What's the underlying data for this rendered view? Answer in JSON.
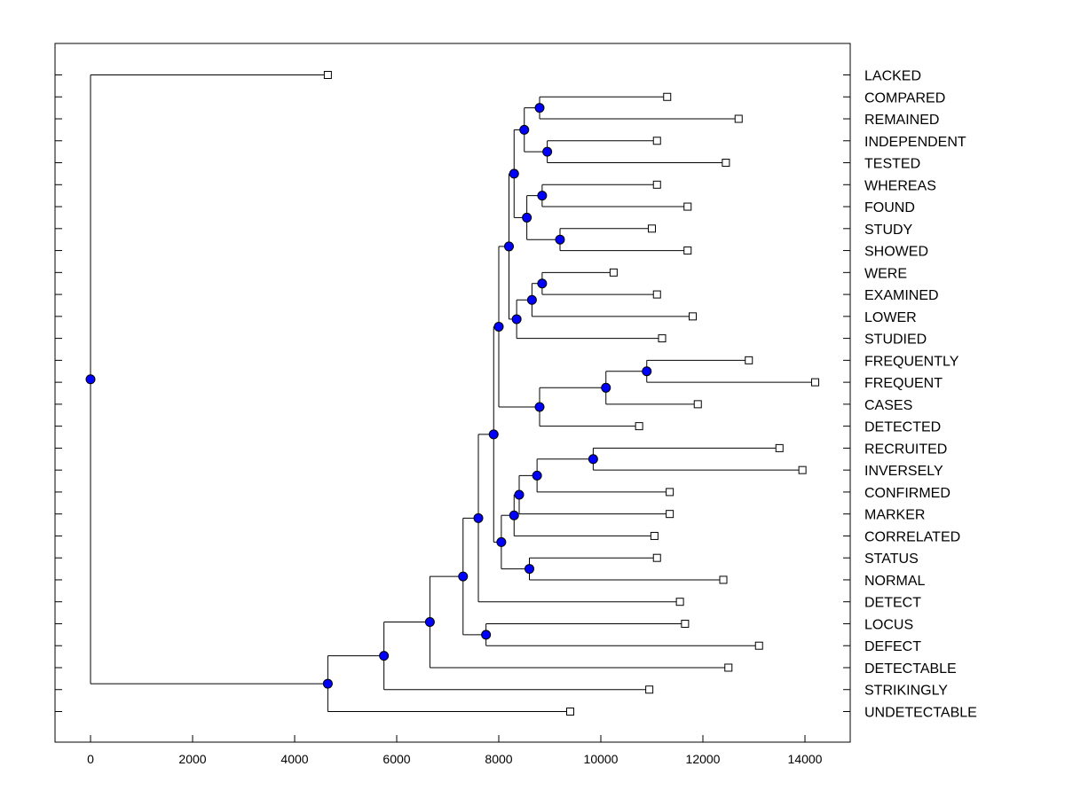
{
  "chart_data": {
    "type": "dendrogram",
    "title": "",
    "xlabel": "",
    "ylabel": "",
    "xlim": [
      -700,
      14800
    ],
    "x_ticks": [
      0,
      2000,
      4000,
      6000,
      8000,
      10000,
      12000,
      14000
    ],
    "x_tick_labels": [
      "0",
      "2000",
      "4000",
      "6000",
      "8000",
      "10000",
      "12000",
      "14000"
    ],
    "grid": false,
    "colors": {
      "node": "#0000ff",
      "line": "#000000",
      "leaf_marker": "#ffffff"
    },
    "leaves": [
      {
        "label": "LACKED",
        "x": 4650
      },
      {
        "label": "COMPARED",
        "x": 11300
      },
      {
        "label": "REMAINED",
        "x": 12700
      },
      {
        "label": "INDEPENDENT",
        "x": 11100
      },
      {
        "label": "TESTED",
        "x": 12450
      },
      {
        "label": "WHEREAS",
        "x": 11100
      },
      {
        "label": "FOUND",
        "x": 11700
      },
      {
        "label": "STUDY",
        "x": 11000
      },
      {
        "label": "SHOWED",
        "x": 11700
      },
      {
        "label": "WERE",
        "x": 10250
      },
      {
        "label": "EXAMINED",
        "x": 11100
      },
      {
        "label": "LOWER",
        "x": 11800
      },
      {
        "label": "STUDIED",
        "x": 11200
      },
      {
        "label": "FREQUENTLY",
        "x": 12900
      },
      {
        "label": "FREQUENT",
        "x": 14200
      },
      {
        "label": "CASES",
        "x": 11900
      },
      {
        "label": "DETECTED",
        "x": 10750
      },
      {
        "label": "RECRUITED",
        "x": 13500
      },
      {
        "label": "INVERSELY",
        "x": 13950
      },
      {
        "label": "CONFIRMED",
        "x": 11350
      },
      {
        "label": "MARKER",
        "x": 11350
      },
      {
        "label": "CORRELATED",
        "x": 11050
      },
      {
        "label": "STATUS",
        "x": 11100
      },
      {
        "label": "NORMAL",
        "x": 12400
      },
      {
        "label": "DETECT",
        "x": 11550
      },
      {
        "label": "LOCUS",
        "x": 11650
      },
      {
        "label": "DEFECT",
        "x": 13100
      },
      {
        "label": "DETECTABLE",
        "x": 12500
      },
      {
        "label": "STRIKINGLY",
        "x": 10950
      },
      {
        "label": "UNDETECTABLE",
        "x": 9400
      }
    ],
    "merges": [
      {
        "id": "C0",
        "x": 8800,
        "children": [
          "L1",
          "L2"
        ]
      },
      {
        "id": "C1",
        "x": 8950,
        "children": [
          "L3",
          "L4"
        ]
      },
      {
        "id": "C2",
        "x": 8500,
        "children": [
          "C0",
          "C1"
        ]
      },
      {
        "id": "C3",
        "x": 8850,
        "children": [
          "L5",
          "L6"
        ]
      },
      {
        "id": "C4",
        "x": 9200,
        "children": [
          "L7",
          "L8"
        ]
      },
      {
        "id": "C5",
        "x": 8550,
        "children": [
          "C3",
          "C4"
        ]
      },
      {
        "id": "C6",
        "x": 8300,
        "children": [
          "C2",
          "C5"
        ]
      },
      {
        "id": "C7",
        "x": 8850,
        "children": [
          "L9",
          "L10"
        ]
      },
      {
        "id": "C8",
        "x": 8650,
        "children": [
          "C7",
          "L11"
        ]
      },
      {
        "id": "C9",
        "x": 8350,
        "children": [
          "C8",
          "L12"
        ]
      },
      {
        "id": "C10",
        "x": 8200,
        "children": [
          "C6",
          "C9"
        ]
      },
      {
        "id": "C11",
        "x": 10900,
        "children": [
          "L13",
          "L14"
        ]
      },
      {
        "id": "C12",
        "x": 10100,
        "children": [
          "C11",
          "L15"
        ]
      },
      {
        "id": "C13",
        "x": 8800,
        "children": [
          "C12",
          "L16"
        ]
      },
      {
        "id": "C14",
        "x": 8000,
        "children": [
          "C10",
          "C13"
        ]
      },
      {
        "id": "C15",
        "x": 9850,
        "children": [
          "L17",
          "L18"
        ]
      },
      {
        "id": "C16",
        "x": 8750,
        "children": [
          "C15",
          "L19"
        ]
      },
      {
        "id": "C17",
        "x": 8400,
        "children": [
          "C16",
          "L20"
        ]
      },
      {
        "id": "C18",
        "x": 8300,
        "children": [
          "C17",
          "L21"
        ]
      },
      {
        "id": "C19",
        "x": 8600,
        "children": [
          "L22",
          "L23"
        ]
      },
      {
        "id": "C20",
        "x": 8050,
        "children": [
          "C18",
          "C19"
        ]
      },
      {
        "id": "C21",
        "x": 7900,
        "children": [
          "C14",
          "C20"
        ]
      },
      {
        "id": "C22",
        "x": 7600,
        "children": [
          "C21",
          "L24"
        ]
      },
      {
        "id": "C23",
        "x": 7750,
        "children": [
          "L25",
          "L26"
        ]
      },
      {
        "id": "C24",
        "x": 7300,
        "children": [
          "C22",
          "C23"
        ]
      },
      {
        "id": "C25",
        "x": 6650,
        "children": [
          "C24",
          "L27"
        ]
      },
      {
        "id": "C26",
        "x": 5750,
        "children": [
          "C25",
          "L28"
        ]
      },
      {
        "id": "C27",
        "x": 4650,
        "children": [
          "C26",
          "L29"
        ]
      },
      {
        "id": "ROOT",
        "x": 0,
        "children": [
          "L0",
          "C27"
        ]
      }
    ]
  }
}
